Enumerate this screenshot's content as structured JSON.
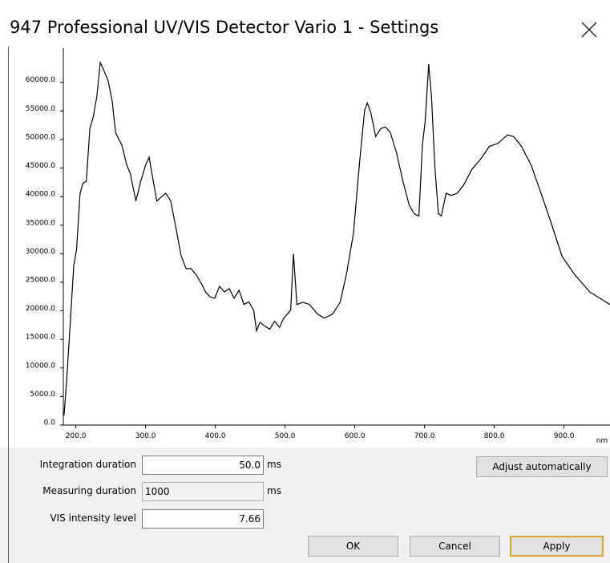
{
  "window": {
    "title": "947 Professional UV/VIS Detector Vario 1 - Settings"
  },
  "chart_data": {
    "type": "line",
    "color": "#000000",
    "x_label": "nm",
    "x": [
      183,
      187,
      192,
      197,
      201,
      206,
      210,
      215,
      220,
      225,
      230,
      235,
      240,
      246,
      252,
      257,
      266,
      273,
      278,
      286,
      293,
      300,
      305,
      309,
      316,
      322,
      329,
      336,
      344,
      351,
      358,
      365,
      372,
      379,
      386,
      392,
      399,
      406,
      413,
      420,
      427,
      434,
      441,
      448,
      455,
      459,
      464,
      471,
      478,
      485,
      492,
      498,
      508,
      512,
      517,
      526,
      535,
      547,
      556,
      568,
      579,
      588,
      598,
      607,
      614,
      618,
      623,
      630,
      637,
      644,
      651,
      660,
      669,
      678,
      685,
      692,
      697,
      701,
      706,
      710,
      715,
      720,
      724,
      731,
      738,
      747,
      756,
      768,
      780,
      793,
      805,
      819,
      828,
      839,
      853,
      867,
      881,
      897,
      915,
      937,
      966
    ],
    "values": [
      1700,
      8100,
      18000,
      27900,
      30700,
      40600,
      42300,
      42700,
      51900,
      54000,
      57500,
      63500,
      62100,
      60400,
      56800,
      51200,
      49000,
      45500,
      44100,
      39200,
      42700,
      45500,
      46900,
      44100,
      39200,
      39900,
      40600,
      39200,
      34200,
      29600,
      27400,
      27400,
      26400,
      25000,
      23300,
      22500,
      22200,
      24300,
      23300,
      23900,
      22200,
      23600,
      21100,
      21600,
      20100,
      16500,
      18000,
      17300,
      16800,
      18200,
      17100,
      18700,
      20100,
      30000,
      21100,
      21500,
      21100,
      19400,
      18700,
      19400,
      21500,
      26400,
      33500,
      46200,
      55000,
      56400,
      54700,
      50500,
      51900,
      52200,
      51200,
      47600,
      42700,
      38500,
      37000,
      36600,
      49100,
      53300,
      63200,
      57500,
      44800,
      37000,
      36600,
      40600,
      40200,
      40600,
      42000,
      44800,
      46500,
      48800,
      49300,
      50800,
      50500,
      48800,
      45500,
      40600,
      35600,
      29600,
      26400,
      23300,
      21100
    ],
    "xlim": [
      182,
      966
    ],
    "ylim": [
      0,
      66000
    ],
    "xticks": [
      {
        "value": 200,
        "label": "200.0"
      },
      {
        "value": 300,
        "label": "300.0"
      },
      {
        "value": 400,
        "label": "400.0"
      },
      {
        "value": 500,
        "label": "500.0"
      },
      {
        "value": 600,
        "label": "600.0"
      },
      {
        "value": 700,
        "label": "700.0"
      },
      {
        "value": 800,
        "label": "800.0"
      },
      {
        "value": 900,
        "label": "900.0"
      }
    ],
    "yticks": [
      {
        "value": 0,
        "label": "0.0"
      },
      {
        "value": 5000,
        "label": "5000.0"
      },
      {
        "value": 10000,
        "label": "10000.0"
      },
      {
        "value": 15000,
        "label": "15000.0"
      },
      {
        "value": 20000,
        "label": "20000.0"
      },
      {
        "value": 25000,
        "label": "25000.0"
      },
      {
        "value": 30000,
        "label": "30000.0"
      },
      {
        "value": 35000,
        "label": "35000.0"
      },
      {
        "value": 40000,
        "label": "40000.0"
      },
      {
        "value": 45000,
        "label": "45000.0"
      },
      {
        "value": 50000,
        "label": "50000.0"
      },
      {
        "value": 55000,
        "label": "55000.0"
      },
      {
        "value": 60000,
        "label": "60000.0"
      }
    ]
  },
  "form": {
    "fields": [
      {
        "label": "Integration duration",
        "value": "50.0",
        "unit": "ms"
      },
      {
        "label": "Measuring duration",
        "value": "1000",
        "unit": "ms"
      },
      {
        "label": "VIS intensity level",
        "value": "7.66"
      }
    ],
    "buttons": {
      "adjust": "Adjust automatically",
      "ok": "OK",
      "cancel": "Cancel",
      "apply": "Apply"
    }
  }
}
